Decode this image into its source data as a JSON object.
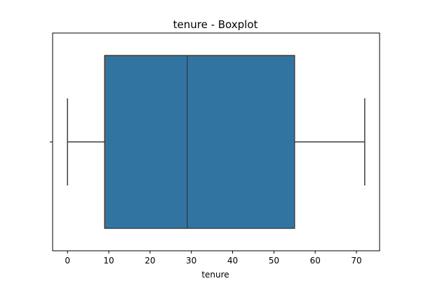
{
  "chart_data": {
    "type": "boxplot",
    "title": "tenure - Boxplot",
    "xlabel": "tenure",
    "ylabel": "",
    "xlim": [
      -3.6,
      75.6
    ],
    "x_ticks": [
      0,
      10,
      20,
      30,
      40,
      50,
      60,
      70
    ],
    "x_tick_labels": [
      "0",
      "10",
      "20",
      "30",
      "40",
      "50",
      "60",
      "70"
    ],
    "grid": false,
    "box": {
      "min": 0,
      "q1": 9,
      "median": 29,
      "q3": 55,
      "max": 72
    },
    "colors": {
      "box_fill": "#3274a1",
      "line": "#3f3f3f"
    }
  }
}
